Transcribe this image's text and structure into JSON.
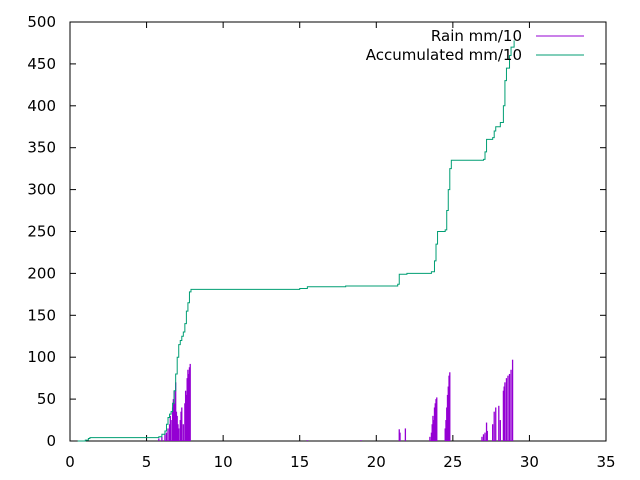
{
  "chart_data": {
    "type": "line",
    "xlim": [
      0,
      35
    ],
    "ylim": [
      0,
      500
    ],
    "x_ticks": [
      0,
      5,
      10,
      15,
      20,
      25,
      30,
      35
    ],
    "y_ticks": [
      0,
      50,
      100,
      150,
      200,
      250,
      300,
      350,
      400,
      450,
      500
    ],
    "x_tick_labels": [
      "0",
      "5",
      "10",
      "15",
      "20",
      "25",
      "30",
      "35"
    ],
    "y_tick_labels": [
      "0",
      "50",
      "100",
      "150",
      "200",
      "250",
      "300",
      "350",
      "400",
      "450",
      "500"
    ],
    "grid": false,
    "legend_position": "top-right",
    "series": [
      {
        "name": "Rain mm/10",
        "style": "impulses",
        "color": "#9400d3",
        "points": [
          [
            5.8,
            3
          ],
          [
            6.0,
            5
          ],
          [
            6.2,
            8
          ],
          [
            6.3,
            10
          ],
          [
            6.4,
            15
          ],
          [
            6.5,
            20
          ],
          [
            6.55,
            30
          ],
          [
            6.6,
            25
          ],
          [
            6.7,
            40
          ],
          [
            6.75,
            50
          ],
          [
            6.8,
            60
          ],
          [
            6.85,
            45
          ],
          [
            6.9,
            70
          ],
          [
            6.95,
            35
          ],
          [
            7.0,
            30
          ],
          [
            7.05,
            20
          ],
          [
            7.1,
            15
          ],
          [
            7.2,
            25
          ],
          [
            7.25,
            35
          ],
          [
            7.3,
            40
          ],
          [
            7.4,
            20
          ],
          [
            7.5,
            45
          ],
          [
            7.55,
            60
          ],
          [
            7.6,
            55
          ],
          [
            7.65,
            75
          ],
          [
            7.7,
            85
          ],
          [
            7.75,
            80
          ],
          [
            7.8,
            88
          ],
          [
            7.85,
            92
          ],
          [
            15.5,
            1
          ],
          [
            19.0,
            1
          ],
          [
            21.5,
            14
          ],
          [
            21.55,
            10
          ],
          [
            21.9,
            15
          ],
          [
            23.5,
            5
          ],
          [
            23.6,
            10
          ],
          [
            23.65,
            20
          ],
          [
            23.7,
            30
          ],
          [
            23.75,
            25
          ],
          [
            23.8,
            40
          ],
          [
            23.85,
            45
          ],
          [
            23.9,
            50
          ],
          [
            23.95,
            52
          ],
          [
            24.5,
            15
          ],
          [
            24.55,
            25
          ],
          [
            24.6,
            40
          ],
          [
            24.65,
            55
          ],
          [
            24.7,
            65
          ],
          [
            24.75,
            78
          ],
          [
            24.8,
            82
          ],
          [
            26.9,
            5
          ],
          [
            27.0,
            8
          ],
          [
            27.1,
            10
          ],
          [
            27.2,
            22
          ],
          [
            27.25,
            12
          ],
          [
            27.6,
            20
          ],
          [
            27.7,
            35
          ],
          [
            27.8,
            40
          ],
          [
            28.0,
            42
          ],
          [
            28.1,
            25
          ],
          [
            28.3,
            60
          ],
          [
            28.35,
            65
          ],
          [
            28.4,
            70
          ],
          [
            28.5,
            75
          ],
          [
            28.6,
            78
          ],
          [
            28.7,
            80
          ],
          [
            28.8,
            85
          ],
          [
            28.9,
            97
          ]
        ]
      },
      {
        "name": "Accumulated mm/10",
        "style": "lines",
        "color": "#009e73",
        "points": [
          [
            0.5,
            0
          ],
          [
            1.0,
            1
          ],
          [
            1.2,
            3
          ],
          [
            1.3,
            4
          ],
          [
            5.5,
            4
          ],
          [
            5.8,
            5
          ],
          [
            6.0,
            8
          ],
          [
            6.2,
            12
          ],
          [
            6.3,
            20
          ],
          [
            6.4,
            28
          ],
          [
            6.5,
            32
          ],
          [
            6.6,
            35
          ],
          [
            6.7,
            45
          ],
          [
            6.8,
            60
          ],
          [
            6.9,
            80
          ],
          [
            7.0,
            100
          ],
          [
            7.1,
            115
          ],
          [
            7.2,
            120
          ],
          [
            7.3,
            125
          ],
          [
            7.4,
            130
          ],
          [
            7.5,
            140
          ],
          [
            7.6,
            155
          ],
          [
            7.7,
            165
          ],
          [
            7.8,
            178
          ],
          [
            7.9,
            181
          ],
          [
            15.0,
            182
          ],
          [
            15.5,
            184
          ],
          [
            18.0,
            185
          ],
          [
            21.4,
            187
          ],
          [
            21.5,
            199
          ],
          [
            22.0,
            200
          ],
          [
            23.6,
            202
          ],
          [
            23.8,
            215
          ],
          [
            23.9,
            235
          ],
          [
            24.0,
            250
          ],
          [
            24.5,
            252
          ],
          [
            24.6,
            275
          ],
          [
            24.7,
            300
          ],
          [
            24.8,
            325
          ],
          [
            24.9,
            335
          ],
          [
            27.0,
            336
          ],
          [
            27.1,
            345
          ],
          [
            27.2,
            360
          ],
          [
            27.6,
            362
          ],
          [
            27.7,
            370
          ],
          [
            27.8,
            375
          ],
          [
            28.1,
            380
          ],
          [
            28.3,
            400
          ],
          [
            28.4,
            430
          ],
          [
            28.5,
            445
          ],
          [
            28.7,
            460
          ],
          [
            28.8,
            470
          ],
          [
            29.0,
            478
          ]
        ]
      }
    ]
  }
}
